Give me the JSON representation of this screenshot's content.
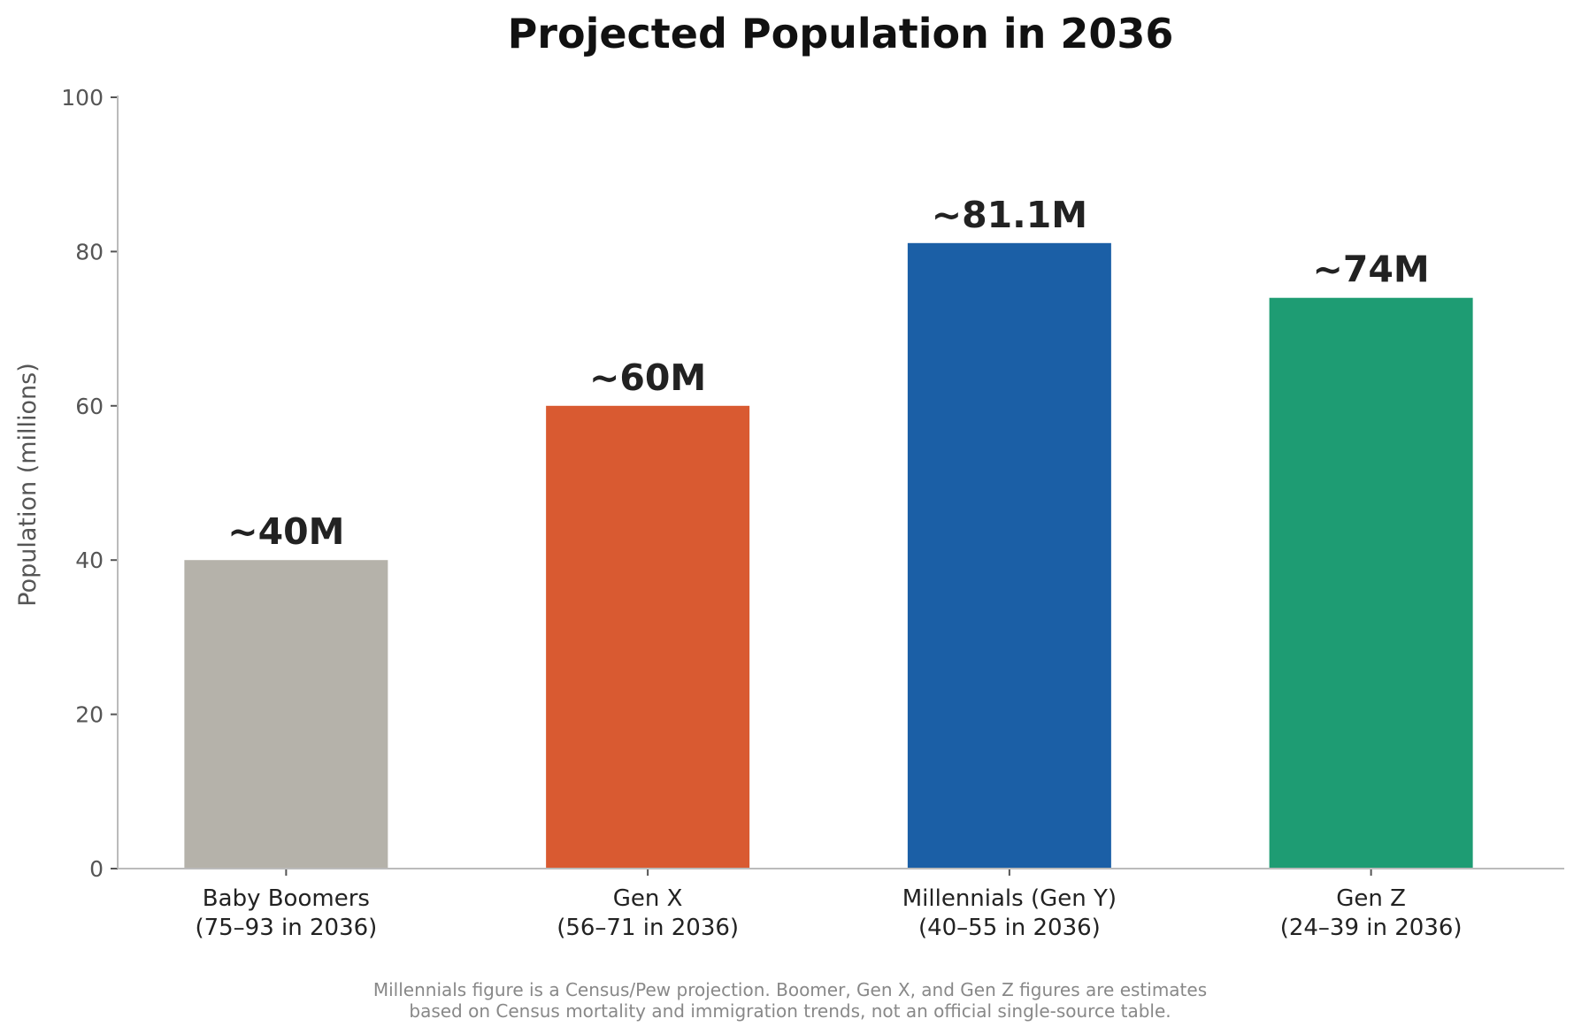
{
  "chart_data": {
    "type": "bar",
    "title": "Projected Population in 2036",
    "xlabel": "",
    "ylabel": "Population (millions)",
    "ylim": [
      0,
      100
    ],
    "yticks": [
      0,
      20,
      40,
      60,
      80,
      100
    ],
    "grid": false,
    "categories": [
      {
        "line1": "Baby Boomers",
        "line2": "(75–93 in 2036)"
      },
      {
        "line1": "Gen X",
        "line2": "(56–71 in 2036)"
      },
      {
        "line1": "Millennials (Gen Y)",
        "line2": "(40–55 in 2036)"
      },
      {
        "line1": "Gen Z",
        "line2": "(24–39 in 2036)"
      }
    ],
    "values": [
      40,
      60,
      81.1,
      74
    ],
    "data_labels": [
      "~40M",
      "~60M",
      "~81.1M",
      "~74M"
    ],
    "colors": [
      "#b5b2aa",
      "#d95a31",
      "#1b5fa6",
      "#1e9c73"
    ],
    "footnote": [
      "Millennials figure is a Census/Pew projection. Boomer, Gen X, and Gen Z figures are estimates",
      "based on Census mortality and immigration trends, not an official single-source table."
    ]
  }
}
